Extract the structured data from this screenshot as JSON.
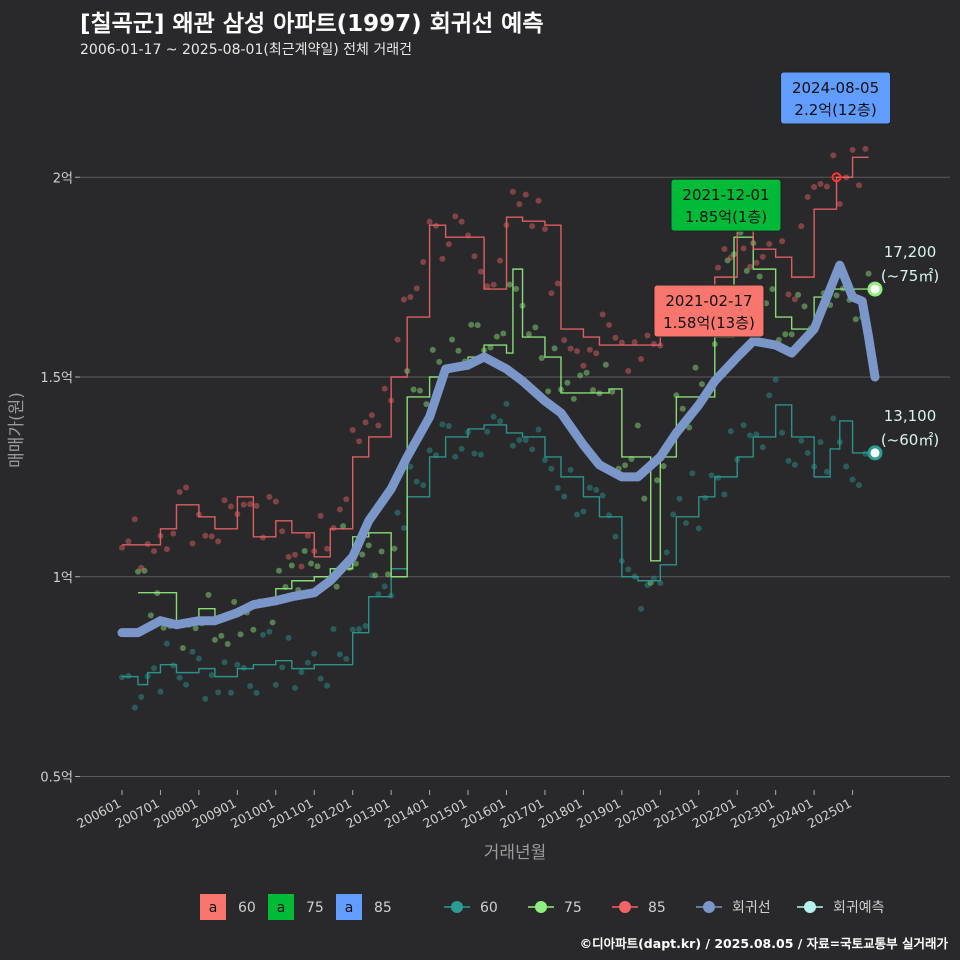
{
  "title": "[칠곡군] 왜관 삼성 아파트(1997) 회귀선 예측",
  "subtitle": "2006-01-17 ~ 2025-08-01(최근계약일) 전체 거래건",
  "credit": "©디아파트(dapt.kr) / 2025.08.05 / 자료=국토교통부 실거래가",
  "colors": {
    "s60": "#2b9c94",
    "s75": "#90ee7e",
    "s85": "#f06466",
    "reg": "#7b96c8",
    "pred": "#b8f2f0",
    "grid": "#5a5a5a",
    "bg": "#29292b"
  },
  "chart_data": {
    "type": "line",
    "xlabel": "거래년월",
    "ylabel": "매매가(원)",
    "x_start": "2006-01",
    "x_ticks": [
      "200601",
      "200701",
      "200801",
      "200901",
      "201001",
      "201101",
      "201201",
      "201301",
      "201401",
      "201501",
      "201601",
      "201701",
      "201801",
      "201901",
      "202001",
      "202101",
      "202201",
      "202301",
      "202401",
      "202501"
    ],
    "y_ticks": [
      {
        "v": 0.5,
        "label": "0.5억"
      },
      {
        "v": 1,
        "label": "1억"
      },
      {
        "v": 1.5,
        "label": "1.5억"
      },
      {
        "v": 2,
        "label": "2억"
      }
    ],
    "ylim": [
      0.5,
      2.0
    ],
    "grid": true,
    "series": [
      {
        "key": "s60",
        "name": "60",
        "points": [
          [
            "2006-01",
            0.75
          ],
          [
            "2006-06",
            0.73
          ],
          [
            "2006-09",
            0.76
          ],
          [
            "2007-01",
            0.78
          ],
          [
            "2007-06",
            0.76
          ],
          [
            "2008-01",
            0.77
          ],
          [
            "2008-06",
            0.75
          ],
          [
            "2009-01",
            0.77
          ],
          [
            "2009-06",
            0.78
          ],
          [
            "2010-01",
            0.79
          ],
          [
            "2010-06",
            0.77
          ],
          [
            "2011-01",
            0.78
          ],
          [
            "2011-06",
            0.78
          ],
          [
            "2012-01",
            0.86
          ],
          [
            "2012-06",
            0.95
          ],
          [
            "2013-01",
            1.02
          ],
          [
            "2013-06",
            1.2
          ],
          [
            "2014-01",
            1.3
          ],
          [
            "2014-06",
            1.35
          ],
          [
            "2015-01",
            1.37
          ],
          [
            "2015-06",
            1.38
          ],
          [
            "2016-01",
            1.36
          ],
          [
            "2016-06",
            1.35
          ],
          [
            "2017-01",
            1.3
          ],
          [
            "2017-06",
            1.25
          ],
          [
            "2018-01",
            1.2
          ],
          [
            "2018-06",
            1.15
          ],
          [
            "2019-01",
            1.0
          ],
          [
            "2019-06",
            0.99
          ],
          [
            "2020-01",
            1.03
          ],
          [
            "2020-06",
            1.15
          ],
          [
            "2021-01",
            1.2
          ],
          [
            "2021-06",
            1.25
          ],
          [
            "2022-01",
            1.3
          ],
          [
            "2022-06",
            1.35
          ],
          [
            "2023-01",
            1.43
          ],
          [
            "2023-06",
            1.35
          ],
          [
            "2024-01",
            1.25
          ],
          [
            "2024-06",
            1.32
          ],
          [
            "2024-09",
            1.39
          ],
          [
            "2025-01",
            1.31
          ],
          [
            "2025-06",
            1.3
          ]
        ]
      },
      {
        "key": "s75",
        "name": "75",
        "points": [
          [
            "2006-06",
            0.96
          ],
          [
            "2007-01",
            0.96
          ],
          [
            "2007-06",
            0.88
          ],
          [
            "2008-01",
            0.92
          ],
          [
            "2008-06",
            0.9
          ],
          [
            "2009-01",
            0.92
          ],
          [
            "2009-06",
            0.93
          ],
          [
            "2010-01",
            0.97
          ],
          [
            "2010-06",
            0.99
          ],
          [
            "2011-01",
            1.0
          ],
          [
            "2011-06",
            1.02
          ],
          [
            "2012-01",
            1.1
          ],
          [
            "2012-06",
            1.11
          ],
          [
            "2013-01",
            1.0
          ],
          [
            "2013-06",
            1.45
          ],
          [
            "2014-01",
            1.5
          ],
          [
            "2014-06",
            1.52
          ],
          [
            "2015-01",
            1.55
          ],
          [
            "2015-06",
            1.58
          ],
          [
            "2016-01",
            1.56
          ],
          [
            "2016-03",
            1.77
          ],
          [
            "2016-06",
            1.6
          ],
          [
            "2017-01",
            1.55
          ],
          [
            "2017-06",
            1.46
          ],
          [
            "2018-09",
            1.47
          ],
          [
            "2019-01",
            1.3
          ],
          [
            "2019-06",
            1.3
          ],
          [
            "2019-10",
            1.04
          ],
          [
            "2020-01",
            1.3
          ],
          [
            "2020-06",
            1.45
          ],
          [
            "2021-01",
            1.45
          ],
          [
            "2021-06",
            1.6
          ],
          [
            "2021-12",
            1.85
          ],
          [
            "2022-06",
            1.77
          ],
          [
            "2023-01",
            1.65
          ],
          [
            "2023-06",
            1.62
          ],
          [
            "2024-01",
            1.7
          ],
          [
            "2024-06",
            1.72
          ],
          [
            "2025-01",
            1.72
          ],
          [
            "2025-06",
            1.72
          ]
        ]
      },
      {
        "key": "s85",
        "name": "85",
        "points": [
          [
            "2006-01",
            1.08
          ],
          [
            "2006-06",
            1.08
          ],
          [
            "2007-01",
            1.12
          ],
          [
            "2007-06",
            1.18
          ],
          [
            "2008-01",
            1.15
          ],
          [
            "2008-06",
            1.12
          ],
          [
            "2009-01",
            1.2
          ],
          [
            "2009-06",
            1.1
          ],
          [
            "2010-01",
            1.14
          ],
          [
            "2010-06",
            1.11
          ],
          [
            "2011-01",
            1.05
          ],
          [
            "2011-06",
            1.12
          ],
          [
            "2012-01",
            1.3
          ],
          [
            "2012-06",
            1.35
          ],
          [
            "2013-01",
            1.5
          ],
          [
            "2013-06",
            1.65
          ],
          [
            "2014-01",
            1.88
          ],
          [
            "2014-06",
            1.85
          ],
          [
            "2015-01",
            1.85
          ],
          [
            "2015-06",
            1.72
          ],
          [
            "2016-01",
            1.9
          ],
          [
            "2016-06",
            1.89
          ],
          [
            "2017-01",
            1.88
          ],
          [
            "2017-06",
            1.62
          ],
          [
            "2018-01",
            1.6
          ],
          [
            "2018-06",
            1.58
          ],
          [
            "2019-01",
            1.58
          ],
          [
            "2020-01",
            1.62
          ],
          [
            "2021-01",
            1.7
          ],
          [
            "2021-06",
            1.75
          ],
          [
            "2022-01",
            1.93
          ],
          [
            "2022-06",
            1.82
          ],
          [
            "2023-01",
            1.8
          ],
          [
            "2023-06",
            1.75
          ],
          [
            "2024-01",
            1.92
          ],
          [
            "2024-08",
            2.0
          ],
          [
            "2025-01",
            2.05
          ],
          [
            "2025-06",
            2.05
          ]
        ]
      },
      {
        "key": "reg",
        "name": "회귀선",
        "points": [
          [
            "2006-01",
            0.86
          ],
          [
            "2006-06",
            0.86
          ],
          [
            "2007-01",
            0.89
          ],
          [
            "2007-06",
            0.88
          ],
          [
            "2008-01",
            0.89
          ],
          [
            "2008-06",
            0.89
          ],
          [
            "2009-01",
            0.91
          ],
          [
            "2009-06",
            0.93
          ],
          [
            "2010-01",
            0.94
          ],
          [
            "2010-06",
            0.95
          ],
          [
            "2011-01",
            0.96
          ],
          [
            "2011-06",
            0.99
          ],
          [
            "2012-01",
            1.05
          ],
          [
            "2012-06",
            1.14
          ],
          [
            "2013-01",
            1.22
          ],
          [
            "2013-06",
            1.3
          ],
          [
            "2014-01",
            1.4
          ],
          [
            "2014-06",
            1.52
          ],
          [
            "2015-01",
            1.53
          ],
          [
            "2015-06",
            1.55
          ],
          [
            "2016-01",
            1.52
          ],
          [
            "2016-06",
            1.49
          ],
          [
            "2017-01",
            1.44
          ],
          [
            "2017-06",
            1.41
          ],
          [
            "2018-01",
            1.33
          ],
          [
            "2018-06",
            1.28
          ],
          [
            "2019-01",
            1.25
          ],
          [
            "2019-06",
            1.25
          ],
          [
            "2020-01",
            1.3
          ],
          [
            "2020-06",
            1.36
          ],
          [
            "2021-01",
            1.43
          ],
          [
            "2021-06",
            1.49
          ],
          [
            "2022-01",
            1.55
          ],
          [
            "2022-06",
            1.59
          ],
          [
            "2023-01",
            1.58
          ],
          [
            "2023-06",
            1.56
          ],
          [
            "2024-01",
            1.62
          ],
          [
            "2024-06",
            1.72
          ],
          [
            "2024-09",
            1.78
          ],
          [
            "2025-01",
            1.7
          ],
          [
            "2025-04",
            1.69
          ],
          [
            "2025-06",
            1.6
          ],
          [
            "2025-08",
            1.5
          ]
        ]
      }
    ],
    "predictions": [
      {
        "key": "s75",
        "date": "2025-08",
        "value": 1.72,
        "label1": "17,200",
        "label2": "(~75㎡)"
      },
      {
        "key": "s60",
        "date": "2025-08",
        "value": 1.31,
        "label1": "13,100",
        "label2": "(~60㎡)"
      }
    ],
    "callouts": [
      {
        "key": "s85",
        "fill": "#f8766d",
        "text_color": "#111111",
        "line1": "2021-02-17",
        "line2": "1.58억(13층)",
        "date": "2021-02",
        "value": 1.58
      },
      {
        "key": "s75",
        "fill": "#00ba38",
        "text_color": "#111111",
        "line1": "2021-12-01",
        "line2": "1.85억(1층)",
        "date": "2021-12",
        "value": 1.85
      },
      {
        "key": "s85",
        "fill": "#619cff",
        "text_color": "#111111",
        "line1": "2024-08-05",
        "line2": "2.2억(12층)",
        "date": "2024-08",
        "value": 2.2
      }
    ],
    "legend": {
      "position": "bottom",
      "area_items": [
        {
          "key": "s60",
          "color": "#f8766d",
          "glyph": "a",
          "label": "60"
        },
        {
          "key": "s75",
          "color": "#00ba38",
          "glyph": "a",
          "label": "75"
        },
        {
          "key": "s85",
          "color": "#619cff",
          "glyph": "a",
          "label": "85"
        }
      ],
      "line_items": [
        {
          "key": "s60",
          "label": "60"
        },
        {
          "key": "s75",
          "label": "75"
        },
        {
          "key": "s85",
          "label": "85"
        },
        {
          "key": "reg",
          "label": "회귀선"
        },
        {
          "key": "pred",
          "label": "회귀예측"
        }
      ]
    }
  }
}
